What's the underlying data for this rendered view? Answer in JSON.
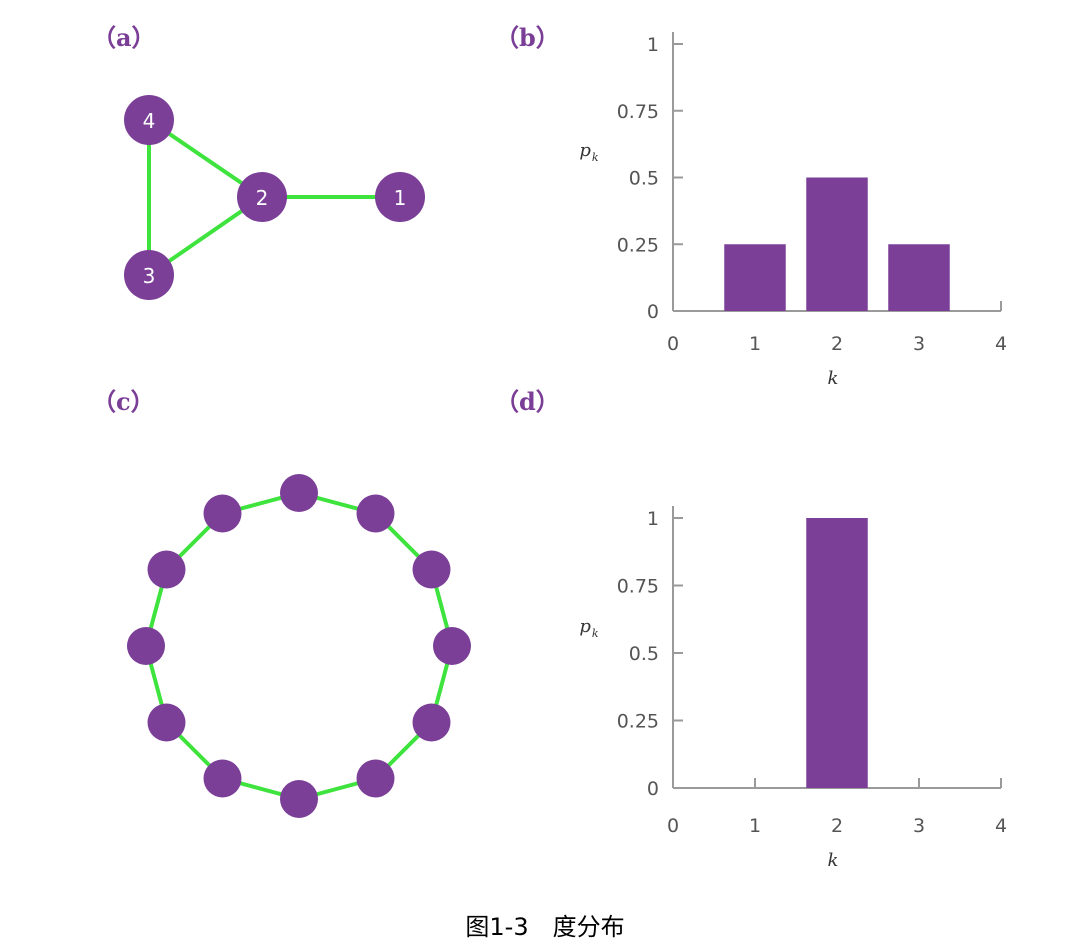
{
  "figure": {
    "caption": "图1-3　度分布",
    "colors": {
      "node": "#7b3f98",
      "edge": "#3ee33e",
      "bar": "#7b3f98",
      "label": "#7a3e96"
    }
  },
  "panel_a": {
    "label": "（a）",
    "nodes": [
      {
        "id": "4",
        "label": "4"
      },
      {
        "id": "2",
        "label": "2"
      },
      {
        "id": "1",
        "label": "1"
      },
      {
        "id": "3",
        "label": "3"
      }
    ],
    "edges": [
      [
        "4",
        "2"
      ],
      [
        "4",
        "3"
      ],
      [
        "3",
        "2"
      ],
      [
        "2",
        "1"
      ]
    ]
  },
  "panel_b": {
    "label": "（b）"
  },
  "panel_c": {
    "label": "（c）",
    "ring_node_count": 12
  },
  "panel_d": {
    "label": "（d）"
  },
  "chart_data": [
    {
      "type": "bar",
      "categories": [
        1,
        2,
        3
      ],
      "values": [
        0.25,
        0.5,
        0.25
      ],
      "xticks": [
        "0",
        "1",
        "2",
        "3",
        "4"
      ],
      "yticks": [
        "0",
        "0.25",
        "0.5",
        "0.75",
        "1"
      ],
      "xlabel": "k",
      "ylabel": "p",
      "ylabel_subscript": "k",
      "xlim": [
        0,
        4
      ],
      "ylim": [
        0,
        1
      ]
    },
    {
      "type": "bar",
      "categories": [
        2
      ],
      "values": [
        1
      ],
      "xticks": [
        "0",
        "1",
        "2",
        "3",
        "4"
      ],
      "yticks": [
        "0",
        "0.25",
        "0.5",
        "0.75",
        "1"
      ],
      "xlabel": "k",
      "ylabel": "p",
      "ylabel_subscript": "k",
      "xlim": [
        0,
        4
      ],
      "ylim": [
        0,
        1
      ]
    }
  ]
}
